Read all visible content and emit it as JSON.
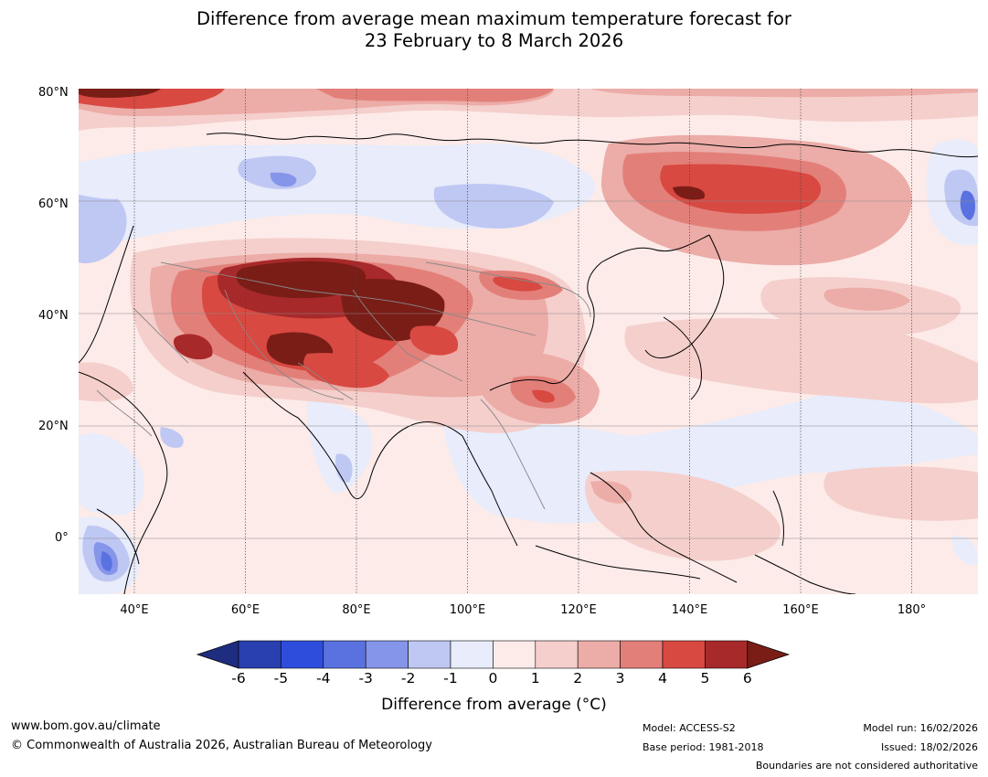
{
  "title": {
    "line1": "Difference from average mean maximum temperature forecast for",
    "line2": "23 February to 8 March 2026"
  },
  "map": {
    "lat_labels": [
      "80°N",
      "60°N",
      "40°N",
      "20°N",
      "0°"
    ],
    "lon_labels": [
      "40°E",
      "60°E",
      "80°E",
      "100°E",
      "120°E",
      "140°E",
      "160°E",
      "180°"
    ],
    "extent": {
      "lon": [
        30,
        192
      ],
      "lat": [
        -10,
        80
      ]
    }
  },
  "colorbar": {
    "ticks": [
      "-6",
      "-5",
      "-4",
      "-3",
      "-2",
      "-1",
      "0",
      "1",
      "2",
      "3",
      "4",
      "5",
      "6"
    ],
    "colors": [
      "#1f2d80",
      "#283fb0",
      "#2f4ddc",
      "#5a72e0",
      "#8595ea",
      "#bfc7f3",
      "#e8ecfb",
      "#fcebe9",
      "#f5cfcc",
      "#ecaca7",
      "#e37f79",
      "#d84941",
      "#a8292a",
      "#7a1d17"
    ],
    "label": "Difference from average (°C)"
  },
  "footer": {
    "url": "www.bom.gov.au/climate",
    "copyright": "© Commonwealth of Australia 2026, Australian Bureau of Meteorology",
    "model": "Model: ACCESS-S2",
    "base_period": "Base period: 1981-2018",
    "model_run": "Model run: 16/02/2026",
    "issued": "Issued: 18/02/2026",
    "boundaries_note": "Boundaries are not considered authoritative"
  }
}
